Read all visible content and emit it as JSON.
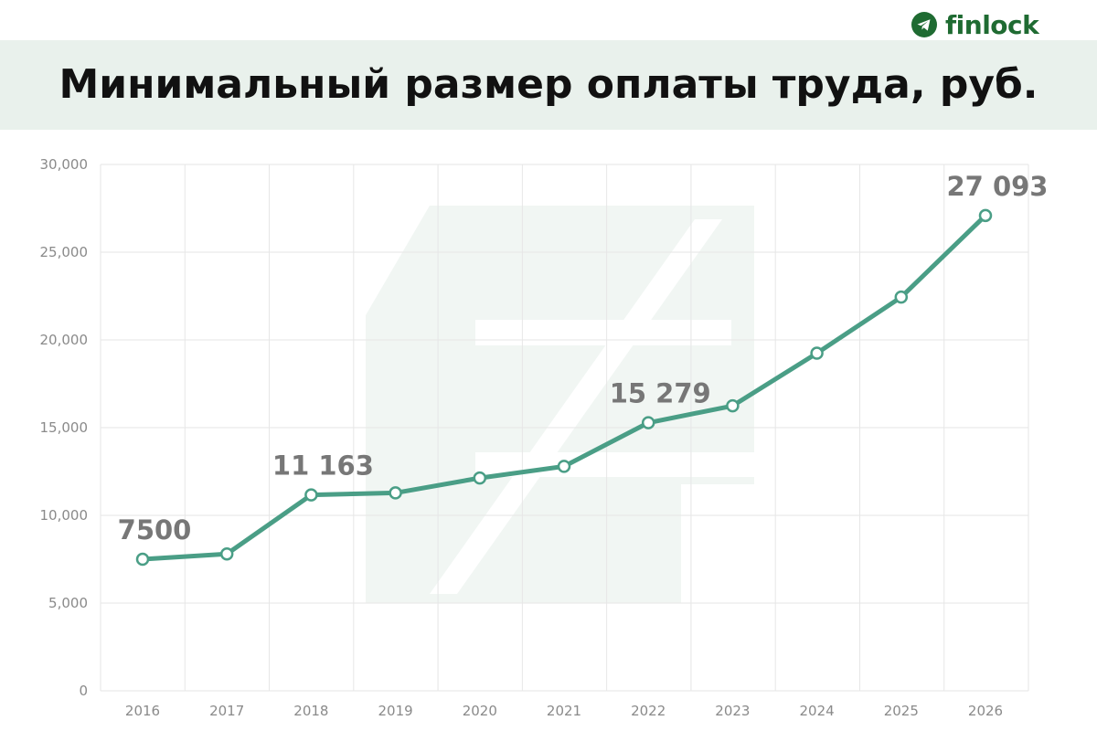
{
  "brand": {
    "name": "finlock",
    "icon": "telegram-icon",
    "color": "#1f6b32"
  },
  "chart_data": {
    "type": "line",
    "title": "Минимальный размер оплаты труда,  руб.",
    "xlabel": "",
    "ylabel": "",
    "x": [
      "2016",
      "2017",
      "2018",
      "2019",
      "2020",
      "2021",
      "2022",
      "2023",
      "2024",
      "2025",
      "2026"
    ],
    "series": [
      {
        "values": [
          7500,
          7800,
          11163,
          11280,
          12130,
          12792,
          15279,
          16242,
          19242,
          22440,
          27093
        ],
        "color": "#4a9e86"
      }
    ],
    "ylim": [
      0,
      30000
    ],
    "yticks": [
      "0",
      "5,000",
      "10,000",
      "15,000",
      "20,000",
      "25,000",
      "30,000"
    ],
    "grid": true,
    "annotations": [
      {
        "index": 0,
        "text": "7500"
      },
      {
        "index": 2,
        "text": "11 163"
      },
      {
        "index": 6,
        "text": "15 279"
      },
      {
        "index": 10,
        "text": "27 093"
      }
    ],
    "watermark": "ruble-sign-watermark"
  }
}
